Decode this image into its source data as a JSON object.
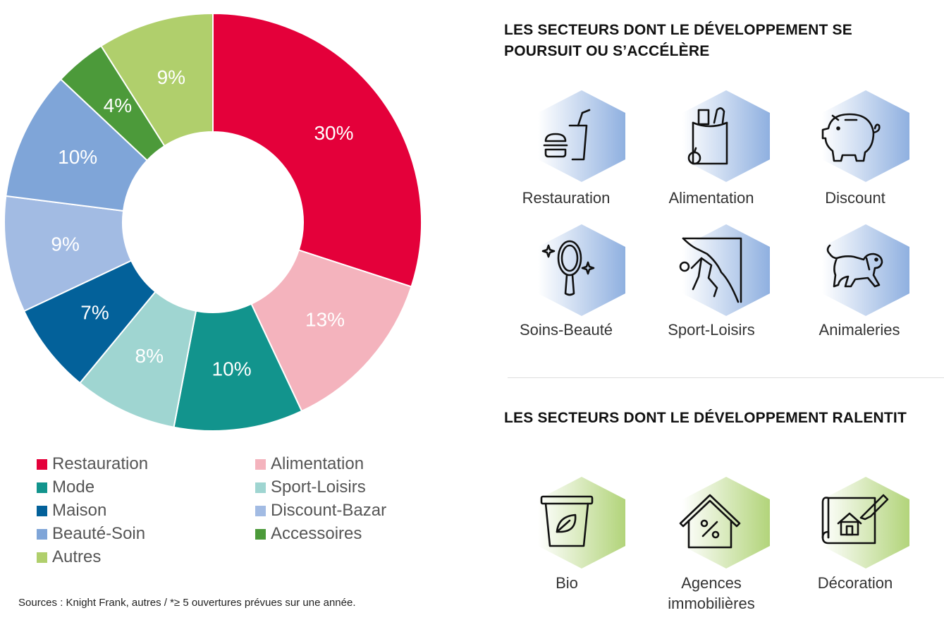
{
  "chart_data": {
    "type": "pie",
    "categories": [
      "Restauration",
      "Alimentation",
      "Mode",
      "Sport-Loisirs",
      "Maison",
      "Discount-Bazar",
      "Beauté-Soin",
      "Accessoires",
      "Autres"
    ],
    "values": [
      30,
      13,
      10,
      8,
      7,
      9,
      10,
      4,
      9
    ],
    "labels": [
      "30%",
      "13%",
      "10%",
      "8%",
      "7%",
      "9%",
      "10%",
      "4%",
      "9%"
    ],
    "colors": {
      "Restauration": "#e4003a",
      "Alimentation": "#f4b3bd",
      "Mode": "#12948d",
      "Sport-Loisirs": "#9fd5d1",
      "Maison": "#03619a",
      "Discount-Bazar": "#a2bbe3",
      "Beauté-Soin": "#7fa5d8",
      "Accessoires": "#4c9a3a",
      "Autres": "#b0cf6c"
    },
    "legend": [
      "Restauration",
      "Alimentation",
      "Mode",
      "Sport-Loisirs",
      "Maison",
      "Discount-Bazar",
      "Beauté-Soin",
      "Accessoires",
      "Autres"
    ]
  },
  "source_note": "Sources : Knight Frank, autres / *≥ 5 ouvertures prévues sur une année.",
  "accelerating": {
    "heading_line1": "LES SECTEURS DONT LE DÉVELOPPEMENT SE",
    "heading_line2": "POURSUIT OU S’ACCÉLÈRE",
    "sectors": [
      {
        "label": "Restauration",
        "icon": "burger-drink-icon"
      },
      {
        "label": "Alimentation",
        "icon": "grocery-bag-icon"
      },
      {
        "label": "Discount",
        "icon": "piggy-bank-icon"
      },
      {
        "label": "Soins-Beauté",
        "icon": "mirror-icon"
      },
      {
        "label": "Sport-Loisirs",
        "icon": "climbing-icon"
      },
      {
        "label": "Animaleries",
        "icon": "dog-icon"
      }
    ]
  },
  "slowing": {
    "heading": "LES SECTEURS DONT LE DÉVELOPPEMENT RALENTIT",
    "sectors": [
      {
        "label": "Bio",
        "icon": "organic-bin-icon"
      },
      {
        "label_line1": "Agences",
        "label_line2": "immobilières",
        "icon": "house-percent-icon"
      },
      {
        "label": "Décoration",
        "icon": "blueprint-icon"
      }
    ]
  }
}
